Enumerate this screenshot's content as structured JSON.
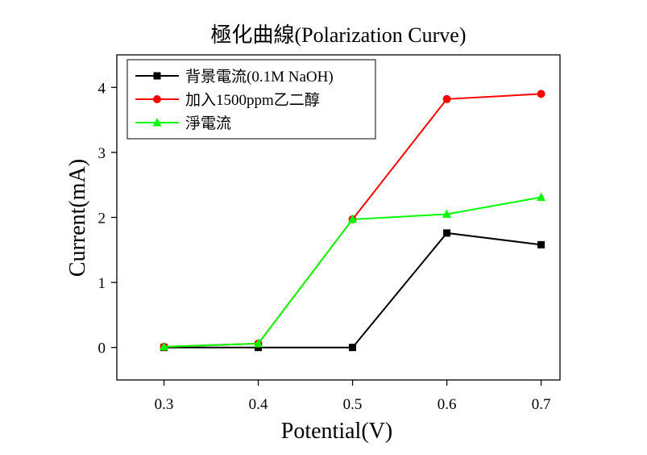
{
  "chart_data": {
    "type": "line",
    "title": "極化曲線(Polarization Curve)",
    "xlabel": "Potential(V)",
    "ylabel": "Current(mA)",
    "xlim": [
      0.25,
      0.72
    ],
    "ylim": [
      -0.5,
      4.5
    ],
    "xticks": [
      "0.3",
      "0.4",
      "0.5",
      "0.6",
      "0.7"
    ],
    "yticks": [
      "0",
      "1",
      "2",
      "3",
      "4"
    ],
    "grid": false,
    "legend_position": "top-left",
    "series": [
      {
        "name": "背景電流(0.1M NaOH)",
        "color": "#000000",
        "marker": "square",
        "x": [
          0.3,
          0.4,
          0.5,
          0.6,
          0.7
        ],
        "y": [
          0.0,
          0.0,
          0.0,
          1.76,
          1.58
        ]
      },
      {
        "name": "加入1500ppm乙二醇",
        "color": "#ff0000",
        "marker": "circle",
        "x": [
          0.3,
          0.4,
          0.5,
          0.6,
          0.7
        ],
        "y": [
          0.01,
          0.06,
          1.97,
          3.82,
          3.9
        ]
      },
      {
        "name": "淨電流",
        "color": "#00ff00",
        "marker": "triangle",
        "x": [
          0.3,
          0.4,
          0.5,
          0.6,
          0.7
        ],
        "y": [
          0.01,
          0.06,
          1.97,
          2.05,
          2.31
        ]
      }
    ]
  }
}
